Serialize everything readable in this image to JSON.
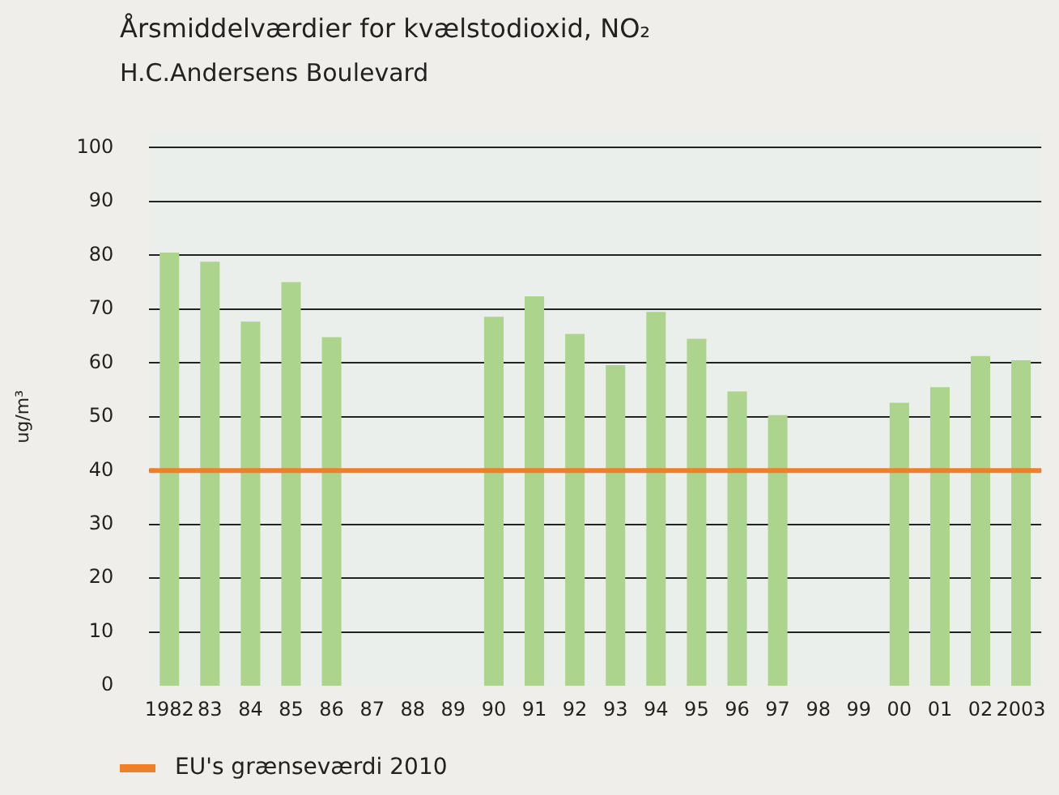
{
  "chart_data": {
    "type": "bar",
    "title": "Årsmiddelværdier for kvælstodioxid, NO₂",
    "subtitle": "H.C.Andersens Boulevard",
    "ylabel": "ug/m³",
    "categories": [
      "1982",
      "83",
      "84",
      "85",
      "86",
      "87",
      "88",
      "89",
      "90",
      "91",
      "92",
      "93",
      "94",
      "95",
      "96",
      "97",
      "98",
      "99",
      "00",
      "01",
      "02",
      "2003"
    ],
    "series": [
      {
        "color": "#acd48c",
        "values": [
          80.5,
          78.8,
          67.7,
          75,
          64.8,
          null,
          null,
          null,
          68.6,
          72.4,
          65.4,
          59.6,
          69.5,
          64.5,
          54.7,
          50.3,
          null,
          null,
          52.6,
          55.5,
          61.3,
          60.5
        ]
      }
    ],
    "ylim": [
      0,
      100
    ],
    "yticks": [
      0,
      10,
      20,
      30,
      40,
      50,
      60,
      70,
      80,
      90,
      100
    ],
    "grid": "y",
    "legend": "bottom left",
    "ref_lines": [
      {
        "axis": "y",
        "value": 40,
        "label": "EU's grænseværdi 2010",
        "color": "#f07f2a"
      }
    ]
  }
}
